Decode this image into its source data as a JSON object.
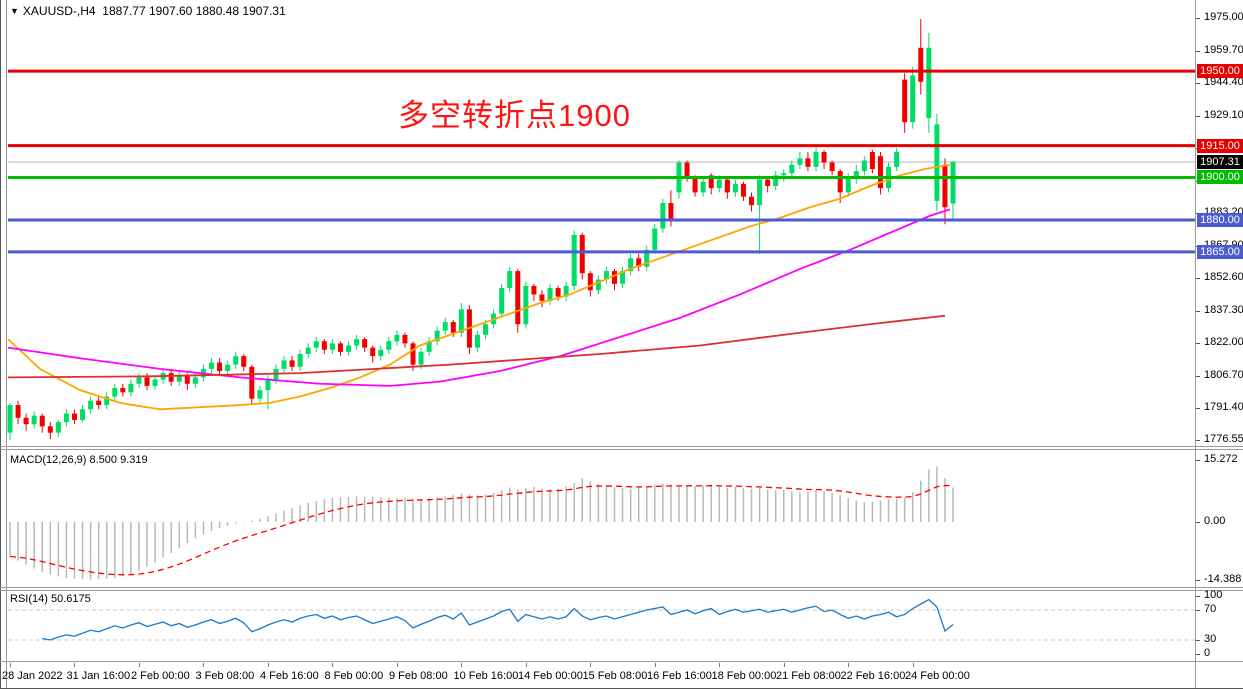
{
  "title_line": "XAUUSD-,H4  1887.77 1907.60 1880.48 1907.31",
  "chart_data": {
    "type": "candlestick_with_indicators",
    "symbol": "XAUUSD-",
    "timeframe": "H4",
    "last_bar": {
      "open": "1887.77",
      "high": "1907.60",
      "low": "1880.48",
      "close": "1907.31"
    },
    "annotation": {
      "text": "多空转折点1900",
      "color": "#ff1414"
    },
    "colors": {
      "up": "#00dd66",
      "down": "#f20000",
      "line_red": "#e60000",
      "line_green": "#00bb00",
      "line_blue": "#4c5bd4",
      "current_line": "#b4b4b4",
      "current_badge": "#000000",
      "ma_fast": "#ffa500",
      "ma_mid": "#ff00ff",
      "ma_slow": "#d93030",
      "macd_hist": "#b8b8b8",
      "macd_signal": "#ff0000",
      "rsi_line": "#1e78c8",
      "rsi_level": "#c8c8c8"
    },
    "price_axis": {
      "ticks": [
        "1975.00",
        "1959.70",
        "1944.40",
        "1929.10",
        "1913.80",
        "1898.50",
        "1883.20",
        "1867.90",
        "1852.60",
        "1837.30",
        "1822.00",
        "1806.70",
        "1791.40",
        "1776.55"
      ],
      "min": 1776.55,
      "max": 1975.0
    },
    "horizontal_lines": [
      {
        "price": 1950.0,
        "label": "1950.00",
        "color": "#e60000"
      },
      {
        "price": 1915.0,
        "label": "1915.00",
        "color": "#e60000"
      },
      {
        "price": 1900.0,
        "label": "1900.00",
        "color": "#00bb00"
      },
      {
        "price": 1880.0,
        "label": "1880.00",
        "color": "#4c5bd4"
      },
      {
        "price": 1865.0,
        "label": "1865.00",
        "color": "#4c5bd4"
      }
    ],
    "current_price": {
      "value": 1907.31,
      "label": "1907.31"
    },
    "candles": [
      [
        1780,
        1794,
        1776.6,
        1793
      ],
      [
        1793,
        1795,
        1784,
        1787
      ],
      [
        1787,
        1789,
        1781,
        1784
      ],
      [
        1784,
        1790,
        1782,
        1788
      ],
      [
        1788,
        1789,
        1780,
        1783
      ],
      [
        1783,
        1785,
        1777,
        1780
      ],
      [
        1780,
        1786,
        1778,
        1785
      ],
      [
        1785,
        1791,
        1783,
        1789
      ],
      [
        1789,
        1791,
        1784,
        1786
      ],
      [
        1786,
        1793,
        1785,
        1791
      ],
      [
        1791,
        1797,
        1789,
        1795
      ],
      [
        1795,
        1797,
        1791,
        1793
      ],
      [
        1793,
        1799,
        1791,
        1797
      ],
      [
        1797,
        1803,
        1795,
        1801
      ],
      [
        1801,
        1803,
        1797,
        1799
      ],
      [
        1799,
        1805,
        1797,
        1803
      ],
      [
        1803,
        1808,
        1801,
        1806
      ],
      [
        1806,
        1808,
        1800,
        1802
      ],
      [
        1802,
        1807,
        1800,
        1805
      ],
      [
        1805,
        1810,
        1803,
        1808
      ],
      [
        1808,
        1810,
        1802,
        1804
      ],
      [
        1804,
        1809,
        1802,
        1807
      ],
      [
        1807,
        1808,
        1800,
        1803
      ],
      [
        1803,
        1808,
        1801,
        1806
      ],
      [
        1806,
        1812,
        1804,
        1810
      ],
      [
        1810,
        1815,
        1808,
        1813
      ],
      [
        1813,
        1815,
        1807,
        1809
      ],
      [
        1809,
        1814,
        1807,
        1812
      ],
      [
        1812,
        1818,
        1810,
        1816
      ],
      [
        1816,
        1817,
        1809,
        1811
      ],
      [
        1811,
        1812,
        1793,
        1796
      ],
      [
        1796,
        1802,
        1794,
        1800
      ],
      [
        1800,
        1807,
        1791,
        1805
      ],
      [
        1805,
        1812,
        1803,
        1810
      ],
      [
        1810,
        1816,
        1808,
        1814
      ],
      [
        1814,
        1816,
        1809,
        1811
      ],
      [
        1811,
        1819,
        1809,
        1817
      ],
      [
        1817,
        1822,
        1815,
        1820
      ],
      [
        1820,
        1825,
        1818,
        1823
      ],
      [
        1823,
        1824,
        1817,
        1819
      ],
      [
        1819,
        1824,
        1817,
        1822
      ],
      [
        1822,
        1823,
        1816,
        1818
      ],
      [
        1818,
        1823,
        1816,
        1821
      ],
      [
        1821,
        1826,
        1819,
        1824
      ],
      [
        1824,
        1825,
        1818,
        1820
      ],
      [
        1820,
        1821,
        1813,
        1816
      ],
      [
        1816,
        1821,
        1814,
        1819
      ],
      [
        1819,
        1825,
        1817,
        1823
      ],
      [
        1823,
        1828,
        1821,
        1826
      ],
      [
        1826,
        1827,
        1820,
        1822
      ],
      [
        1822,
        1823,
        1809,
        1812
      ],
      [
        1812,
        1820,
        1810,
        1818
      ],
      [
        1818,
        1825,
        1816,
        1823
      ],
      [
        1823,
        1830,
        1821,
        1828
      ],
      [
        1828,
        1834,
        1826,
        1832
      ],
      [
        1832,
        1833,
        1825,
        1827
      ],
      [
        1827,
        1841,
        1825,
        1838
      ],
      [
        1838,
        1840,
        1817,
        1820
      ],
      [
        1820,
        1828,
        1818,
        1826
      ],
      [
        1826,
        1833,
        1824,
        1831
      ],
      [
        1831,
        1838,
        1829,
        1836
      ],
      [
        1836,
        1850,
        1834,
        1848
      ],
      [
        1848,
        1858,
        1846,
        1856
      ],
      [
        1856,
        1857,
        1827,
        1831
      ],
      [
        1831,
        1851,
        1829,
        1849
      ],
      [
        1849,
        1850,
        1842,
        1845
      ],
      [
        1845,
        1847,
        1839,
        1842
      ],
      [
        1842,
        1850,
        1840,
        1848
      ],
      [
        1848,
        1849,
        1842,
        1844
      ],
      [
        1844,
        1851,
        1842,
        1849
      ],
      [
        1849,
        1875,
        1847,
        1873
      ],
      [
        1873,
        1874,
        1852,
        1855
      ],
      [
        1855,
        1856,
        1844,
        1847
      ],
      [
        1847,
        1854,
        1845,
        1852
      ],
      [
        1852,
        1858,
        1850,
        1856
      ],
      [
        1856,
        1857,
        1847,
        1850
      ],
      [
        1850,
        1858,
        1848,
        1856
      ],
      [
        1856,
        1864,
        1854,
        1862
      ],
      [
        1862,
        1864,
        1856,
        1858
      ],
      [
        1858,
        1868,
        1856,
        1866
      ],
      [
        1866,
        1878,
        1864,
        1876
      ],
      [
        1876,
        1890,
        1874,
        1888
      ],
      [
        1888,
        1894,
        1877,
        1880
      ],
      [
        1893,
        1908,
        1890,
        1907
      ],
      [
        1907,
        1908,
        1898,
        1900
      ],
      [
        1900,
        1901,
        1891,
        1893
      ],
      [
        1893,
        1900,
        1891,
        1898
      ],
      [
        1901,
        1902,
        1892,
        1895
      ],
      [
        1895,
        1901,
        1893,
        1899
      ],
      [
        1899,
        1900,
        1890,
        1893
      ],
      [
        1893,
        1899,
        1891,
        1897
      ],
      [
        1897,
        1898,
        1889,
        1891
      ],
      [
        1891,
        1893,
        1884,
        1887
      ],
      [
        1887,
        1901,
        1864,
        1899
      ],
      [
        1899,
        1900,
        1893,
        1896
      ],
      [
        1896,
        1903,
        1894,
        1901
      ],
      [
        1901,
        1904,
        1898,
        1902
      ],
      [
        1902,
        1908,
        1900,
        1906
      ],
      [
        1906,
        1912,
        1904,
        1909
      ],
      [
        1909,
        1912,
        1903,
        1905
      ],
      [
        1905,
        1914,
        1903,
        1912
      ],
      [
        1912,
        1913,
        1904,
        1907
      ],
      [
        1907,
        1908,
        1901,
        1903
      ],
      [
        1903,
        1904,
        1888,
        1893
      ],
      [
        1893,
        1902,
        1891,
        1900
      ],
      [
        1900,
        1906,
        1897,
        1903
      ],
      [
        1903,
        1910,
        1901,
        1908
      ],
      [
        1912,
        1913,
        1902,
        1904
      ],
      [
        1910,
        1912,
        1892,
        1895
      ],
      [
        1895,
        1907,
        1893,
        1905
      ],
      [
        1905,
        1914,
        1903,
        1912
      ],
      [
        1946,
        1949,
        1921,
        1926
      ],
      [
        1926,
        1952,
        1923,
        1948
      ],
      [
        1961,
        1974.5,
        1939,
        1945
      ],
      [
        1928,
        1968,
        1921,
        1961
      ],
      [
        1889,
        1930,
        1884,
        1925
      ],
      [
        1906,
        1909,
        1878,
        1886
      ],
      [
        1887.77,
        1907.6,
        1880.48,
        1907.31
      ]
    ],
    "moving_averages": [
      {
        "name": "ma-fast-orange",
        "color": "#ffa500",
        "points": [
          [
            8,
            1824
          ],
          [
            40,
            1810
          ],
          [
            80,
            1800
          ],
          [
            120,
            1794
          ],
          [
            160,
            1791
          ],
          [
            200,
            1792
          ],
          [
            240,
            1793
          ],
          [
            270,
            1794
          ],
          [
            300,
            1797
          ],
          [
            330,
            1801
          ],
          [
            360,
            1806
          ],
          [
            390,
            1812
          ],
          [
            420,
            1821
          ],
          [
            450,
            1826
          ],
          [
            480,
            1831
          ],
          [
            510,
            1836
          ],
          [
            540,
            1841
          ],
          [
            570,
            1845
          ],
          [
            600,
            1851
          ],
          [
            630,
            1857
          ],
          [
            660,
            1862
          ],
          [
            690,
            1867
          ],
          [
            720,
            1872
          ],
          [
            750,
            1877
          ],
          [
            780,
            1881
          ],
          [
            810,
            1886
          ],
          [
            840,
            1890
          ],
          [
            870,
            1896
          ],
          [
            900,
            1901
          ],
          [
            925,
            1904
          ],
          [
            950,
            1906
          ]
        ]
      },
      {
        "name": "ma-mid-magenta",
        "color": "#ff00ff",
        "points": [
          [
            8,
            1820
          ],
          [
            80,
            1815
          ],
          [
            160,
            1810
          ],
          [
            240,
            1806
          ],
          [
            320,
            1803
          ],
          [
            390,
            1802
          ],
          [
            440,
            1804
          ],
          [
            500,
            1809
          ],
          [
            560,
            1816
          ],
          [
            620,
            1825
          ],
          [
            680,
            1834
          ],
          [
            740,
            1845
          ],
          [
            800,
            1857
          ],
          [
            850,
            1866
          ],
          [
            900,
            1876
          ],
          [
            930,
            1882
          ],
          [
            950,
            1885
          ]
        ]
      },
      {
        "name": "ma-slow-firebrick",
        "color": "#d93030",
        "points": [
          [
            8,
            1806
          ],
          [
            150,
            1806.5
          ],
          [
            300,
            1808
          ],
          [
            450,
            1812
          ],
          [
            600,
            1817
          ],
          [
            700,
            1821
          ],
          [
            800,
            1827
          ],
          [
            870,
            1831
          ],
          [
            945,
            1835
          ]
        ]
      }
    ],
    "macd": {
      "label": "MACD(12,26,9)",
      "value_main": "8.500",
      "value_signal": "9.319",
      "axis_ticks": [
        "15.272",
        "0.00",
        "-14.388"
      ],
      "histogram": [
        -8.5,
        -9.5,
        -10.5,
        -11.5,
        -12.3,
        -12.9,
        -13.4,
        -13.8,
        -14.0,
        -14.1,
        -14.2,
        -14.1,
        -14.0,
        -13.8,
        -13.4,
        -12.8,
        -12.0,
        -11.0,
        -10.0,
        -8.8,
        -7.6,
        -6.4,
        -5.2,
        -4.0,
        -3.0,
        -2.2,
        -1.5,
        -0.9,
        -0.4,
        -0.1,
        0.3,
        0.8,
        1.4,
        2.1,
        2.8,
        3.5,
        4.1,
        4.7,
        5.2,
        5.6,
        5.9,
        6.1,
        6.2,
        6.3,
        6.3,
        6.2,
        6.1,
        6.0,
        5.9,
        5.9,
        5.8,
        5.7,
        5.8,
        6.0,
        6.3,
        6.6,
        7.0,
        6.8,
        6.6,
        6.8,
        7.2,
        7.8,
        8.5,
        8.0,
        8.4,
        8.6,
        8.2,
        8.0,
        8.2,
        8.8,
        9.6,
        10.8,
        10.0,
        9.4,
        9.0,
        8.6,
        8.3,
        8.2,
        8.4,
        8.8,
        9.2,
        9.5,
        9.2,
        8.9,
        9.0,
        8.8,
        8.9,
        9.2,
        8.8,
        8.5,
        8.7,
        8.4,
        8.2,
        8.4,
        8.0,
        7.8,
        8.0,
        7.6,
        7.3,
        7.5,
        7.9,
        7.6,
        7.2,
        6.6,
        5.9,
        5.3,
        4.8,
        5.0,
        5.3,
        5.6,
        5.8,
        6.0,
        7.4,
        10.2,
        12.9,
        13.7,
        10.8,
        8.5
      ],
      "signal_smoothing": 0.15
    },
    "rsi": {
      "label": "RSI(14)",
      "value": "50.6175",
      "axis_ticks": [
        "100",
        "70",
        "30",
        "0"
      ],
      "levels": [
        70,
        30
      ],
      "start_index": 4,
      "values": [
        32,
        30,
        34,
        37,
        35,
        39,
        43,
        41,
        45,
        49,
        46,
        50,
        53,
        48,
        51,
        54,
        49,
        52,
        47,
        50,
        54,
        57,
        52,
        55,
        59,
        53,
        41,
        45,
        50,
        54,
        57,
        54,
        59,
        62,
        64,
        59,
        62,
        57,
        60,
        62,
        57,
        52,
        55,
        58,
        61,
        56,
        46,
        51,
        55,
        60,
        63,
        58,
        66,
        50,
        54,
        58,
        62,
        68,
        71,
        55,
        64,
        61,
        58,
        61,
        58,
        61,
        72,
        62,
        57,
        60,
        62,
        58,
        61,
        64,
        67,
        70,
        72,
        74,
        64,
        67,
        70,
        65,
        69,
        72,
        64,
        68,
        71,
        67,
        69,
        71,
        67,
        69,
        71,
        67,
        70,
        73,
        75,
        68,
        70,
        64,
        59,
        62,
        58,
        62,
        64,
        67,
        61,
        64,
        72,
        78,
        84,
        74,
        42,
        50.6
      ]
    },
    "time_axis": {
      "labels": [
        "28 Jan 2022",
        "31 Jan 16:00",
        "2 Feb 00:00",
        "3 Feb 08:00",
        "4 Feb 16:00",
        "8 Feb 00:00",
        "9 Feb 08:00",
        "10 Feb 16:00",
        "14 Feb 00:00",
        "15 Feb 08:00",
        "16 Feb 16:00",
        "18 Feb 00:00",
        "21 Feb 08:00",
        "22 Feb 16:00",
        "24 Feb 00:00"
      ]
    }
  }
}
